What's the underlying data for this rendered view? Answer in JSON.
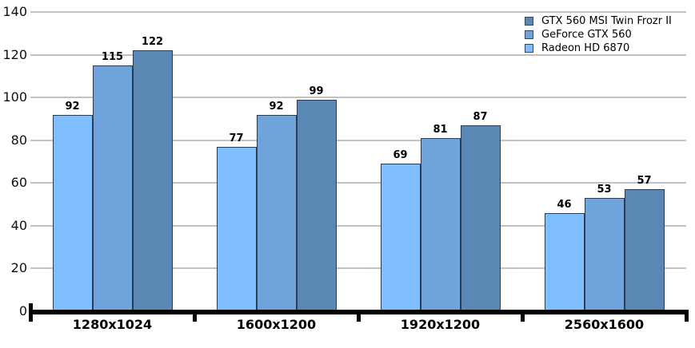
{
  "chart_data": {
    "type": "bar",
    "title": "",
    "xlabel": "",
    "ylabel": "",
    "categories": [
      "1280x1024",
      "1600x1200",
      "1920x1200",
      "2560x1600"
    ],
    "series": [
      {
        "name": "GTX 560 MSI Twin Frozr II",
        "color": "#5b87b5",
        "values": [
          122,
          99,
          87,
          57
        ]
      },
      {
        "name": "GeForce GTX 560",
        "color": "#6ea3db",
        "values": [
          115,
          92,
          81,
          53
        ]
      },
      {
        "name": "Radeon HD 6870",
        "color": "#7fbeff",
        "values": [
          92,
          77,
          69,
          46
        ]
      }
    ],
    "group_draw_order": [
      2,
      1,
      0
    ],
    "yticks": [
      0,
      20,
      40,
      60,
      80,
      100,
      120,
      140
    ],
    "ylim": [
      0,
      140
    ],
    "bar_value_labels": true,
    "grid": "horizontal",
    "legend_position": "top-right",
    "colors": {
      "gridline": "#c2c2c2",
      "axis": "#000000",
      "bar_border": "#2b3d55",
      "text": "#000000"
    }
  }
}
